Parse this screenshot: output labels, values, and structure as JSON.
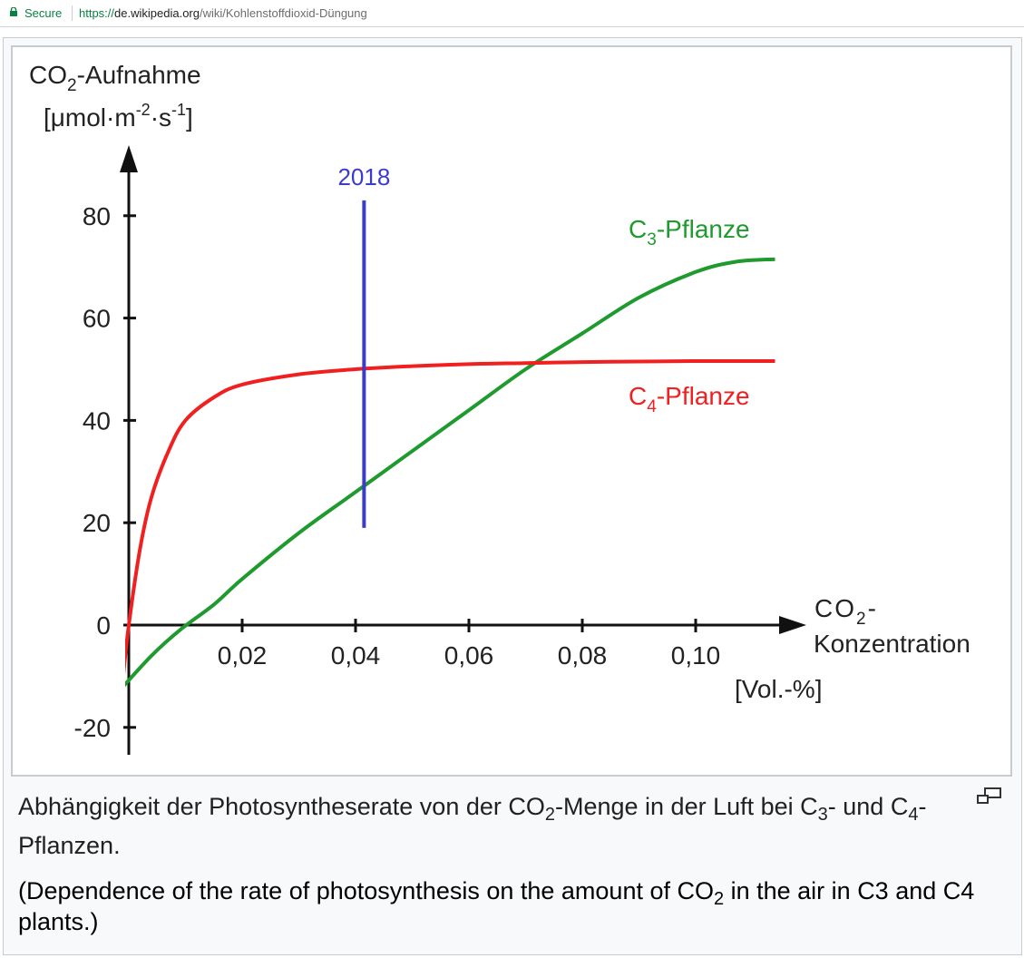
{
  "browser": {
    "secure_label": "Secure",
    "url_scheme": "https://",
    "url_host": "de.wikipedia.org",
    "url_path": "/wiki/Kohlenstoffdioxid-Düngung"
  },
  "figure": {
    "caption": {
      "part1": "Abhängigkeit der Photosyntheserate von der CO",
      "sub1": "2",
      "part2": "-Menge in der Luft bei C",
      "sub2": "3",
      "part3": "- und C",
      "sub3": "4",
      "part4": "-Pflanzen."
    },
    "translation": {
      "part1": "(Dependence of the rate of photosynthesis on the amount of ",
      "co2": "CO",
      "sub": "2",
      "part2": " in the air in ",
      "c3": "C3",
      "part3": " and ",
      "c4": "C4",
      "part4": " plants.)"
    },
    "magnify_icon": "magnify-icon"
  },
  "chart_data": {
    "type": "line",
    "ylabel": {
      "line1_a": "CO",
      "line1_sub": "2",
      "line1_b": "-Aufnahme",
      "line2_a": "[μmol·m",
      "line2_sup1": "-2",
      "line2_b": "·s",
      "line2_sup2": "-1",
      "line2_c": "]"
    },
    "xlabel": {
      "line1_a": "CO",
      "line1_sub": "2",
      "line1_b": "-",
      "line2": "Konzentration",
      "line3": "[Vol.-%]"
    },
    "xlim": [
      -0.001,
      0.114
    ],
    "ylim": [
      -25,
      90
    ],
    "x_ticks": [
      0.02,
      0.04,
      0.06,
      0.08,
      0.1
    ],
    "x_tick_labels": [
      "0,02",
      "0,04",
      "0,06",
      "0,08",
      "0,10"
    ],
    "y_ticks": [
      80,
      60,
      40,
      20,
      0,
      -20
    ],
    "y_tick_labels": [
      "80",
      "60",
      "40",
      "20",
      "0",
      "-20"
    ],
    "series": [
      {
        "name": "C3-Pflanze",
        "name_a": "C",
        "name_sub": "3",
        "name_b": "-Pflanze",
        "color": "#1f9a2e",
        "x": [
          -0.001,
          0.004,
          0.009,
          0.015,
          0.02,
          0.03,
          0.04,
          0.05,
          0.06,
          0.07,
          0.08,
          0.09,
          0.1,
          0.107,
          0.114
        ],
        "y": [
          -12,
          -6,
          -1,
          4,
          9,
          18,
          26,
          34,
          42,
          50,
          57,
          64,
          69,
          71,
          71.5
        ]
      },
      {
        "name": "C4-Pflanze",
        "name_a": "C",
        "name_sub": "4",
        "name_b": "-Pflanze",
        "color": "#f02020",
        "x": [
          -0.001,
          0.0,
          0.002,
          0.004,
          0.007,
          0.01,
          0.015,
          0.02,
          0.03,
          0.04,
          0.05,
          0.06,
          0.07,
          0.08,
          0.09,
          0.1,
          0.114
        ],
        "y": [
          -10,
          0,
          15,
          25,
          34,
          40,
          44.5,
          47,
          49,
          50,
          50.6,
          51,
          51.2,
          51.4,
          51.5,
          51.6,
          51.6
        ]
      }
    ],
    "marker": {
      "label": "2018",
      "x": 0.0415,
      "y_from": 19,
      "y_to": 83,
      "color": "#3b3bcc"
    }
  }
}
